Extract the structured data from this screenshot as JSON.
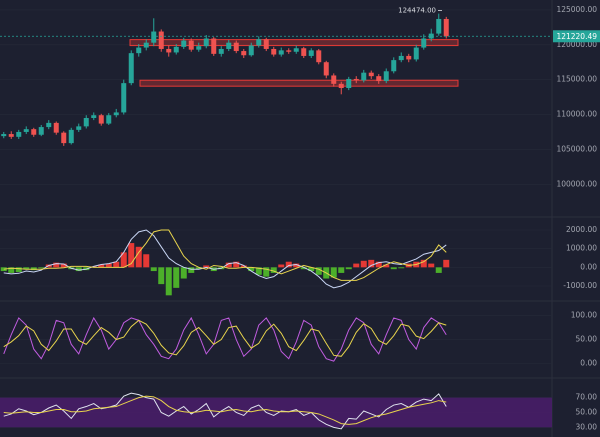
{
  "chart_data": [
    {
      "type": "candlestick",
      "up_color": "#26a69a",
      "down_color": "#ef5350",
      "ylim": [
        95880,
        126420
      ],
      "yticks": [
        {
          "value": 100000,
          "label": "100000.00"
        },
        {
          "value": 105000,
          "label": "105000.00"
        },
        {
          "value": 110000,
          "label": "110000.00"
        },
        {
          "value": 115000,
          "label": "115000.00"
        },
        {
          "value": 120000,
          "label": "120000.00"
        },
        {
          "value": 125000,
          "label": "125000.00"
        }
      ],
      "open": [
        106900,
        107200,
        106800,
        107500,
        107900,
        107100,
        108200,
        108800,
        107400,
        105900,
        107800,
        108300,
        109500,
        109900,
        108700,
        109900,
        110300,
        114500,
        118800,
        119600,
        120300,
        121900,
        119400,
        118900,
        119700,
        120600,
        119300,
        119800,
        120900,
        118700,
        119400,
        120300,
        119100,
        118500,
        119900,
        120800,
        119400,
        118600,
        119200,
        119000,
        119500,
        118400,
        119200,
        117500,
        115600,
        114400,
        113800,
        115100,
        114900,
        116000,
        115500,
        114800,
        116200,
        117800,
        118400,
        117900,
        119600,
        120900,
        121600,
        123700
      ],
      "high": [
        107500,
        107600,
        107800,
        108300,
        108100,
        108500,
        109200,
        109000,
        107600,
        108100,
        108700,
        109900,
        110300,
        110100,
        110200,
        110800,
        115000,
        119200,
        120100,
        120800,
        123800,
        122200,
        119900,
        120100,
        121000,
        120900,
        120300,
        121400,
        121100,
        119800,
        120700,
        120600,
        119400,
        120300,
        121200,
        121000,
        119700,
        119600,
        119500,
        119900,
        119700,
        119500,
        119400,
        117700,
        115900,
        114700,
        115400,
        115500,
        116400,
        116300,
        115800,
        116600,
        118200,
        118900,
        118700,
        120000,
        121500,
        122300,
        124474,
        124000
      ],
      "low": [
        106600,
        106500,
        106500,
        107200,
        106800,
        106900,
        107900,
        107100,
        105500,
        105700,
        107500,
        108000,
        109200,
        108400,
        108500,
        109600,
        110000,
        114200,
        118300,
        119200,
        119800,
        119000,
        118300,
        118600,
        119400,
        119000,
        119000,
        119500,
        118400,
        118300,
        119100,
        118800,
        118100,
        118300,
        119600,
        119100,
        118300,
        118300,
        118700,
        118700,
        118100,
        118100,
        117200,
        115200,
        114000,
        112900,
        113500,
        114500,
        114600,
        115100,
        114400,
        114500,
        115900,
        117500,
        117500,
        117600,
        119300,
        120500,
        121300,
        120900
      ],
      "close": [
        107200,
        106800,
        107500,
        107900,
        107100,
        108200,
        108800,
        107400,
        105900,
        107800,
        108300,
        109500,
        109900,
        108700,
        109900,
        110300,
        114500,
        118800,
        119600,
        120300,
        121900,
        119400,
        118900,
        119700,
        120600,
        119300,
        119800,
        120900,
        118700,
        119400,
        120300,
        119100,
        118500,
        119900,
        120800,
        119400,
        118600,
        119200,
        119000,
        119500,
        118400,
        119200,
        117500,
        115600,
        114400,
        113800,
        115100,
        114900,
        116000,
        115500,
        114800,
        116200,
        117800,
        118400,
        117900,
        119600,
        120900,
        121600,
        123700,
        121220.49
      ],
      "zones": [
        {
          "low": 119886,
          "high": 120740,
          "color": "#e53935"
        },
        {
          "low": 114063,
          "high": 114916,
          "color": "#e53935"
        }
      ],
      "last_price": {
        "value": 121220.49,
        "label": "121220.49",
        "color": "#26a69a"
      },
      "annotation": {
        "value": 124474,
        "label": "124474.00"
      }
    },
    {
      "type": "macd",
      "ylim": [
        -1643,
        2428
      ],
      "positive_color": "#e53935",
      "negative_color": "#4caf2a",
      "yticks": [
        {
          "value": -1000,
          "label": "-1000.00"
        },
        {
          "value": 0,
          "label": "0.00"
        },
        {
          "value": 1000,
          "label": "1000.00"
        },
        {
          "value": 2000,
          "label": "2000.00"
        }
      ],
      "histogram": [
        -200,
        -300,
        -250,
        -100,
        -150,
        -50,
        150,
        250,
        200,
        -100,
        -200,
        -150,
        50,
        150,
        200,
        300,
        800,
        1300,
        1100,
        700,
        -200,
        -900,
        -1500,
        -1100,
        -600,
        -300,
        -100,
        100,
        -200,
        -100,
        250,
        300,
        100,
        -200,
        -400,
        -500,
        -300,
        150,
        300,
        200,
        -100,
        -200,
        -400,
        -600,
        -550,
        -300,
        -100,
        200,
        350,
        400,
        300,
        150,
        -100,
        -50,
        200,
        300,
        400,
        200,
        -300,
        400
      ],
      "series": [
        {
          "color": "#c9d6f5",
          "values": [
            -300,
            -350,
            -320,
            -200,
            -250,
            -150,
            100,
            200,
            180,
            -50,
            -150,
            -100,
            50,
            150,
            200,
            300,
            800,
            1500,
            1900,
            2000,
            1700,
            1100,
            500,
            200,
            0,
            -100,
            -100,
            0,
            -100,
            -50,
            200,
            250,
            100,
            -200,
            -450,
            -600,
            -500,
            -200,
            100,
            150,
            0,
            -200,
            -500,
            -900,
            -1100,
            -1000,
            -800,
            -500,
            -200,
            100,
            250,
            300,
            200,
            150,
            300,
            450,
            700,
            800,
            900,
            1200
          ]
        },
        {
          "color": "#e8d44d",
          "values": [
            -100,
            -50,
            -70,
            -100,
            -100,
            -100,
            -50,
            -50,
            -20,
            50,
            50,
            50,
            0,
            0,
            0,
            0,
            0,
            200,
            800,
            1300,
            1900,
            2000,
            2000,
            1300,
            600,
            200,
            0,
            -100,
            100,
            50,
            -50,
            -50,
            0,
            0,
            -50,
            -100,
            -200,
            -350,
            -200,
            -50,
            100,
            0,
            -100,
            -300,
            -550,
            -700,
            -700,
            -700,
            -550,
            -300,
            -50,
            150,
            300,
            200,
            100,
            150,
            300,
            600,
            1200,
            800
          ]
        }
      ]
    },
    {
      "type": "line",
      "ylim": [
        -24,
        122
      ],
      "yticks": [
        {
          "value": 0,
          "label": "0.00"
        },
        {
          "value": 50,
          "label": "50.00"
        },
        {
          "value": 100,
          "label": "100.00"
        }
      ],
      "series": [
        {
          "color": "#c05ce0",
          "values": [
            20,
            60,
            95,
            80,
            30,
            10,
            40,
            90,
            85,
            40,
            20,
            60,
            95,
            70,
            30,
            50,
            85,
            95,
            90,
            60,
            40,
            15,
            10,
            30,
            70,
            95,
            60,
            20,
            40,
            90,
            95,
            50,
            15,
            30,
            80,
            95,
            70,
            25,
            10,
            45,
            90,
            80,
            35,
            10,
            5,
            30,
            70,
            95,
            85,
            40,
            20,
            60,
            95,
            90,
            50,
            30,
            75,
            95,
            85,
            60
          ]
        },
        {
          "color": "#e8d44d",
          "values": [
            35,
            45,
            58,
            78,
            68,
            40,
            27,
            47,
            72,
            72,
            48,
            40,
            58,
            75,
            65,
            50,
            55,
            77,
            90,
            82,
            63,
            38,
            22,
            18,
            37,
            65,
            75,
            58,
            40,
            50,
            75,
            78,
            53,
            32,
            42,
            68,
            82,
            63,
            35,
            27,
            48,
            72,
            68,
            42,
            17,
            15,
            35,
            65,
            83,
            73,
            48,
            40,
            58,
            82,
            78,
            57,
            52,
            67,
            85,
            80
          ]
        }
      ]
    },
    {
      "type": "line",
      "ylim": [
        17,
        91
      ],
      "band": [
        30,
        70
      ],
      "band_color": "#4a1d6b",
      "yticks": [
        {
          "value": 30,
          "label": "30.00"
        },
        {
          "value": 50,
          "label": "50.00"
        },
        {
          "value": 70,
          "label": "70.00"
        }
      ],
      "series": [
        {
          "color": "#dfe3ee",
          "values": [
            45,
            48,
            55,
            52,
            47,
            50,
            56,
            60,
            52,
            42,
            55,
            58,
            62,
            55,
            57,
            60,
            72,
            76,
            74,
            70,
            68,
            50,
            45,
            52,
            58,
            48,
            54,
            62,
            44,
            52,
            58,
            50,
            46,
            56,
            60,
            50,
            46,
            52,
            51,
            54,
            46,
            50,
            40,
            34,
            30,
            28,
            42,
            41,
            52,
            48,
            44,
            54,
            60,
            62,
            57,
            64,
            68,
            66,
            75,
            58
          ]
        },
        {
          "color": "#e8d44d",
          "values": [
            50,
            49,
            50,
            51,
            50,
            50,
            52,
            54,
            54,
            51,
            51,
            52,
            55,
            56,
            57,
            58,
            62,
            66,
            70,
            72,
            71,
            66,
            58,
            53,
            51,
            50,
            51,
            53,
            52,
            51,
            53,
            54,
            52,
            51,
            53,
            54,
            52,
            51,
            51,
            52,
            51,
            50,
            48,
            44,
            40,
            35,
            34,
            35,
            39,
            43,
            46,
            48,
            51,
            54,
            57,
            59,
            61,
            63,
            66,
            64
          ]
        }
      ]
    }
  ]
}
